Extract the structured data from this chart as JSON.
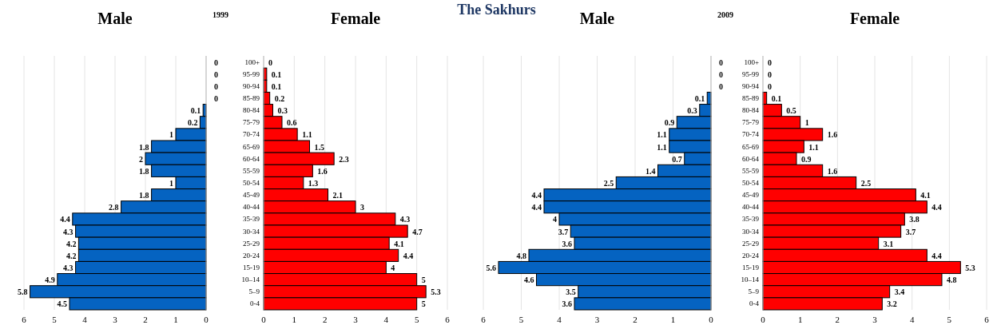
{
  "chart_data": [
    {
      "type": "bar",
      "orientation": "horizontal",
      "title": "Male",
      "subtitle": "1999",
      "annotations": [
        "The Sakhurs"
      ],
      "categories": [
        null,
        null,
        null,
        null,
        null,
        null,
        null,
        null,
        null,
        null,
        null,
        null,
        null,
        null,
        null,
        null,
        null,
        null,
        null,
        null,
        null
      ],
      "series": [
        {
          "color": "#0563c1",
          "values": [
            0,
            0,
            0,
            0,
            0.1,
            0.2,
            1,
            1.8,
            2,
            1.8,
            1,
            1.8,
            2.8,
            4.4,
            4.3,
            4.2,
            4.2,
            4.3,
            4.9,
            5.8,
            4.5
          ]
        }
      ],
      "xlim": [
        6,
        0
      ],
      "xticks": [
        6,
        5,
        4,
        3,
        2,
        1,
        0
      ],
      "grid": "x",
      "data_labels": true
    },
    {
      "type": "bar",
      "orientation": "horizontal",
      "title": "Female",
      "categories": [
        "100+",
        "95-99",
        "90-94",
        "85-89",
        "80-84",
        "75-79",
        "70-74",
        "65-69",
        "60-64",
        "55-59",
        "50-54",
        "45-49",
        "40-44",
        "35-39",
        "30-34",
        "25-29",
        "20-24",
        "15-19",
        "10–14",
        "5–9",
        "0-4"
      ],
      "series": [
        {
          "color": "#ff0000",
          "values": [
            0,
            0.1,
            0.1,
            0.2,
            0.3,
            0.6,
            1.1,
            1.5,
            2.3,
            1.6,
            1.3,
            2.1,
            3,
            4.3,
            4.7,
            4.1,
            4.4,
            4,
            5,
            5.3,
            5
          ]
        }
      ],
      "xlim": [
        0,
        6
      ],
      "xticks": [
        0,
        1,
        2,
        3,
        4,
        5,
        6
      ],
      "grid": "x",
      "data_labels": true
    },
    {
      "type": "bar",
      "orientation": "horizontal",
      "title": "Male",
      "subtitle": "2009",
      "categories": [
        null,
        null,
        null,
        null,
        null,
        null,
        null,
        null,
        null,
        null,
        null,
        null,
        null,
        null,
        null,
        null,
        null,
        null,
        null,
        null,
        null
      ],
      "series": [
        {
          "color": "#0563c1",
          "values": [
            0,
            0,
            0,
            0.1,
            0.3,
            0.9,
            1.1,
            1.1,
            0.7,
            1.4,
            2.5,
            4.4,
            4.4,
            4,
            3.7,
            3.6,
            4.8,
            5.6,
            4.6,
            3.5,
            3.6
          ]
        }
      ],
      "xlim": [
        6,
        0
      ],
      "xticks": [
        6,
        5,
        4,
        3,
        2,
        1,
        0
      ],
      "grid": "x",
      "data_labels": true
    },
    {
      "type": "bar",
      "orientation": "horizontal",
      "title": "Female",
      "categories": [
        "100+",
        "95-99",
        "90-94",
        "85-89",
        "80-84",
        "75-79",
        "70-74",
        "65-69",
        "60-64",
        "55-59",
        "50-54",
        "45-49",
        "40-44",
        "35-39",
        "30-34",
        "25-29",
        "20-24",
        "15-19",
        "10–14",
        "5–9",
        "0-4"
      ],
      "series": [
        {
          "color": "#ff0000",
          "values": [
            0,
            0,
            0,
            0.1,
            0.5,
            1,
            1.6,
            1.1,
            0.9,
            1.6,
            2.5,
            4.1,
            4.4,
            3.8,
            3.7,
            3.1,
            4.4,
            5.3,
            4.8,
            3.4,
            3.2
          ]
        }
      ],
      "xlim": [
        0,
        6
      ],
      "xticks": [
        0,
        1,
        2,
        3,
        4,
        5,
        6
      ],
      "grid": "x",
      "data_labels": true
    }
  ]
}
